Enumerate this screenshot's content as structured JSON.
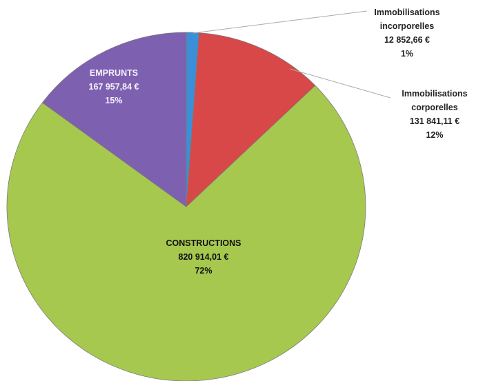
{
  "chart_data": {
    "type": "pie",
    "categories": [
      "Immobilisations incorporelles",
      "Immobilisations corporelles",
      "CONSTRUCTIONS",
      "EMPRUNTS"
    ],
    "values": [
      12852.66,
      131841.11,
      820914.01,
      167957.84
    ],
    "value_labels": [
      "12 852,66 €",
      "131 841,11 €",
      "820 914,01 €",
      "167 957,84 €"
    ],
    "percent_labels": [
      "1%",
      "12%",
      "72%",
      "15%"
    ],
    "colors": [
      "#3b8fd8",
      "#d84848",
      "#a6c84f",
      "#7e60b1"
    ]
  }
}
